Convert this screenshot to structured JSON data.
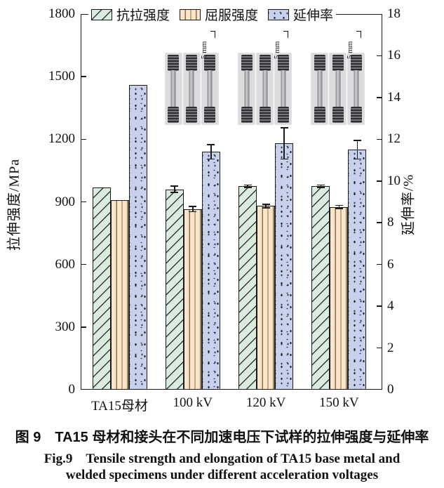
{
  "figure": {
    "caption_zh": "图 9　TA15 母材和接头在不同加速电压下试样的拉伸强度与延伸率",
    "caption_en_line1": "Fig.9　Tensile strength and elongation of TA15 base metal and",
    "caption_en_line2": "welded specimens under different acceleration voltages"
  },
  "colors": {
    "axis": "#1a1a1a",
    "tensile_fill": "#d9ecdf",
    "yield_fill": "#fce4c6",
    "elongation_fill": "#c7d1ec",
    "background": "#ffffff"
  },
  "chart_data": {
    "type": "bar",
    "title": "",
    "categories": [
      "TA15母材",
      "100 kV",
      "120 kV",
      "150 kV"
    ],
    "left_axis": {
      "label": "拉伸强度/MPa",
      "min": 0,
      "max": 1800,
      "ticks": [
        0,
        300,
        600,
        900,
        1200,
        1500,
        1800
      ]
    },
    "right_axis": {
      "label": "延伸率/%",
      "min": 0,
      "max": 18,
      "ticks": [
        0,
        2,
        4,
        6,
        8,
        10,
        12,
        14,
        16,
        18
      ]
    },
    "grid": false,
    "legend_position": "top-inside",
    "series": [
      {
        "name": "抗拉强度",
        "axis": "left",
        "style": "st-hatch",
        "values": [
          970,
          960,
          975,
          975
        ],
        "errors": [
          0,
          15,
          6,
          6
        ]
      },
      {
        "name": "屈服强度",
        "axis": "left",
        "style": "st-vlines",
        "values": [
          910,
          865,
          880,
          875
        ],
        "errors": [
          0,
          12,
          8,
          8
        ]
      },
      {
        "name": "延伸率",
        "axis": "right",
        "style": "st-speckle",
        "values": [
          14.6,
          11.4,
          11.8,
          11.5
        ],
        "errors": [
          0,
          0.35,
          0.75,
          0.45
        ]
      }
    ],
    "insets": [
      {
        "above_category": "100 kV",
        "specimen_count": 3,
        "scale_label": "5 mm"
      },
      {
        "above_category": "120 kV",
        "specimen_count": 3,
        "scale_label": "5 mm"
      },
      {
        "above_category": "150 kV",
        "specimen_count": 3,
        "scale_label": "5 mm"
      }
    ]
  }
}
